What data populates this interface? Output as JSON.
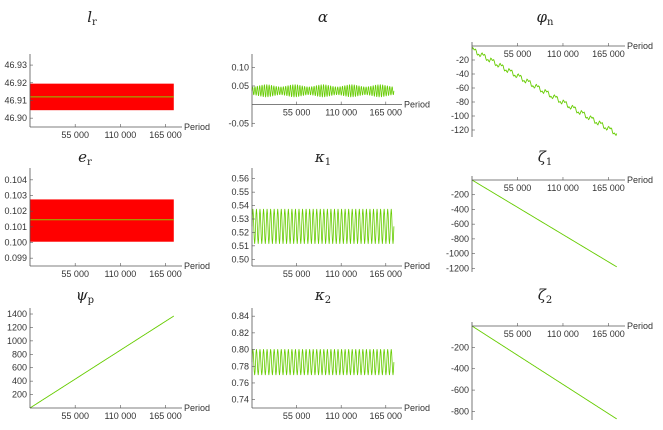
{
  "chart_data": [
    {
      "type": "line",
      "title": "l",
      "title_sub": "r",
      "xlabel": "Period",
      "x_ticks": [
        "55 000",
        "110 000",
        "165 000"
      ],
      "x_tick_values": [
        55000,
        110000,
        165000
      ],
      "xlim": [
        0,
        185000
      ],
      "y_ticks": [
        "46.90",
        "46.91",
        "46.92",
        "46.93"
      ],
      "y_tick_values": [
        46.9,
        46.91,
        46.92,
        46.93
      ],
      "ylim": [
        46.895,
        46.934
      ],
      "x_axis_at": 46.895,
      "band": {
        "low": 46.9045,
        "high": 46.9195,
        "color": "#ff0000",
        "x_end": 175000
      },
      "mean": 46.912,
      "mean_color": "#88cc00",
      "series_color": "#ff0000"
    },
    {
      "type": "line",
      "title": "α",
      "title_sub": "",
      "xlabel": "Period",
      "x_ticks": [
        "55 000",
        "110 000",
        "165 000"
      ],
      "x_tick_values": [
        55000,
        110000,
        165000
      ],
      "xlim": [
        0,
        185000
      ],
      "y_ticks": [
        "-0.05",
        "0.05",
        "0.10"
      ],
      "y_tick_values": [
        -0.05,
        0.05,
        0.1
      ],
      "ylim": [
        -0.06,
        0.125
      ],
      "x_axis_at": 0,
      "oscillation": {
        "center": 0.037,
        "amplitude": 0.017,
        "cycles": 60,
        "beat_cycles": 5,
        "beat_depth": 0.35,
        "x_end": 175000
      },
      "series_color": "#66cc00"
    },
    {
      "type": "line",
      "title": "φ",
      "title_sub": "n",
      "xlabel": "Period",
      "x_ticks": [
        "55 000",
        "110 000",
        "165 000"
      ],
      "x_tick_values": [
        55000,
        110000,
        165000
      ],
      "xlim": [
        0,
        185000
      ],
      "y_ticks": [
        "-20",
        "-40",
        "-60",
        "-80",
        "-100",
        "-120"
      ],
      "y_tick_values": [
        -20,
        -40,
        -60,
        -80,
        -100,
        -120
      ],
      "ylim": [
        -130,
        0
      ],
      "x_axis_at": 0,
      "trend": {
        "start": -5,
        "end": -125,
        "steps": 16,
        "step_wiggle": 3,
        "x_end": 175000
      },
      "series_color": "#66cc00"
    },
    {
      "type": "line",
      "title": "e",
      "title_sub": "r",
      "xlabel": "Period",
      "x_ticks": [
        "55 000",
        "110 000",
        "165 000"
      ],
      "x_tick_values": [
        55000,
        110000,
        165000
      ],
      "xlim": [
        0,
        185000
      ],
      "y_ticks": [
        "0.099",
        "0.100",
        "0.101",
        "0.102",
        "0.103",
        "0.104"
      ],
      "y_tick_values": [
        0.099,
        0.1,
        0.101,
        0.102,
        0.103,
        0.104
      ],
      "ylim": [
        0.0985,
        0.1045
      ],
      "x_axis_at": 0.0985,
      "band": {
        "low": 0.10005,
        "high": 0.10275,
        "color": "#ff0000",
        "x_end": 175000
      },
      "mean": 0.10145,
      "mean_color": "#88cc00",
      "series_color": "#ff0000"
    },
    {
      "type": "line",
      "title": "κ",
      "title_sub": "1",
      "xlabel": "Period",
      "x_ticks": [
        "55 000",
        "110 000",
        "165 000"
      ],
      "x_tick_values": [
        55000,
        110000,
        165000
      ],
      "xlim": [
        0,
        185000
      ],
      "y_ticks": [
        "0.50",
        "0.51",
        "0.52",
        "0.53",
        "0.54",
        "0.55",
        "0.56"
      ],
      "y_tick_values": [
        0.5,
        0.51,
        0.52,
        0.53,
        0.54,
        0.55,
        0.56
      ],
      "ylim": [
        0.495,
        0.565
      ],
      "x_axis_at": 0.495,
      "oscillation": {
        "center": 0.5245,
        "amplitude": 0.013,
        "cycles": 40,
        "beat_cycles": 0,
        "beat_depth": 0,
        "x_end": 175000
      },
      "series_color": "#66cc00"
    },
    {
      "type": "line",
      "title": "ζ",
      "title_sub": "1",
      "xlabel": "Period",
      "x_ticks": [
        "55 000",
        "110 000",
        "165 000"
      ],
      "x_tick_values": [
        55000,
        110000,
        165000
      ],
      "xlim": [
        0,
        185000
      ],
      "y_ticks": [
        "-200",
        "-400",
        "-600",
        "-800",
        "-1000",
        "-1200"
      ],
      "y_tick_values": [
        -200,
        -400,
        -600,
        -800,
        -1000,
        -1200
      ],
      "ylim": [
        -1250,
        0
      ],
      "x_axis_at": 0,
      "trend": {
        "start": 0,
        "end": -1180,
        "steps": 0,
        "step_wiggle": 0,
        "x_end": 175000
      },
      "series_color": "#66cc00"
    },
    {
      "type": "line",
      "title": "ψ",
      "title_sub": "p",
      "xlabel": "Period",
      "x_ticks": [
        "55 000",
        "110 000",
        "165 000"
      ],
      "x_tick_values": [
        55000,
        110000,
        165000
      ],
      "xlim": [
        0,
        185000
      ],
      "y_ticks": [
        "200",
        "400",
        "600",
        "800",
        "1000",
        "1200",
        "1400"
      ],
      "y_tick_values": [
        200,
        400,
        600,
        800,
        1000,
        1200,
        1400
      ],
      "ylim": [
        0,
        1430
      ],
      "x_axis_at": 0,
      "trend": {
        "start": 0,
        "end": 1370,
        "steps": 0,
        "step_wiggle": 0,
        "x_end": 175000
      },
      "series_color": "#66cc00"
    },
    {
      "type": "line",
      "title": "κ",
      "title_sub": "2",
      "xlabel": "Period",
      "x_ticks": [
        "55 000",
        "110 000",
        "165 000"
      ],
      "x_tick_values": [
        55000,
        110000,
        165000
      ],
      "xlim": [
        0,
        185000
      ],
      "y_ticks": [
        "0.74",
        "0.76",
        "0.78",
        "0.80",
        "0.82",
        "0.84"
      ],
      "y_tick_values": [
        0.74,
        0.76,
        0.78,
        0.8,
        0.82,
        0.84
      ],
      "ylim": [
        0.73,
        0.845
      ],
      "x_axis_at": 0.73,
      "oscillation": {
        "center": 0.785,
        "amplitude": 0.0155,
        "cycles": 40,
        "beat_cycles": 0,
        "beat_depth": 0,
        "x_end": 175000
      },
      "series_color": "#66cc00"
    },
    {
      "type": "line",
      "title": "ζ",
      "title_sub": "2",
      "xlabel": "Period",
      "x_ticks": [
        "55 000",
        "110 000",
        "165 000"
      ],
      "x_tick_values": [
        55000,
        110000,
        165000
      ],
      "xlim": [
        0,
        185000
      ],
      "y_ticks": [
        "-200",
        "-400",
        "-600",
        "-800"
      ],
      "y_tick_values": [
        -200,
        -400,
        -600,
        -800
      ],
      "ylim": [
        -880,
        0
      ],
      "x_axis_at": 0,
      "trend": {
        "start": 0,
        "end": -870,
        "steps": 0,
        "step_wiggle": 0,
        "x_end": 175000
      },
      "series_color": "#66cc00"
    }
  ]
}
